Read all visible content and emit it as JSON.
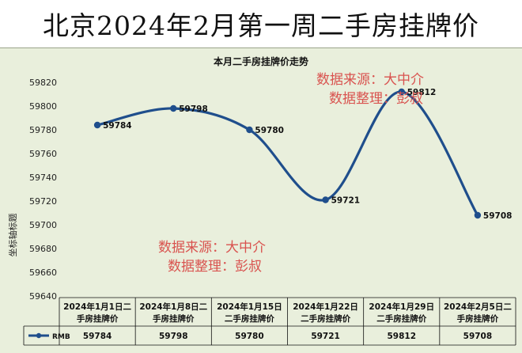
{
  "banner": {
    "title": "北京2024年2月第一周二手房挂牌价"
  },
  "chart_data": {
    "type": "line",
    "title": "本月二手房挂牌价走势",
    "ylabel": "坐标轴标题",
    "xlabel": "",
    "ylim": [
      59640,
      59820
    ],
    "y_ticks": [
      59640,
      59660,
      59680,
      59700,
      59720,
      59740,
      59760,
      59780,
      59800,
      59820
    ],
    "categories": [
      "2024年1月1日二手房挂牌价",
      "2024年1月8日二手房挂牌价",
      "2024年1月15日二手房挂牌价",
      "2024年1月22日二手房挂牌价",
      "2024年1月29日二手房挂牌价",
      "2024年2月5日二手房挂牌价"
    ],
    "category_lines": [
      [
        "2024年1月1日二",
        "手房挂牌价"
      ],
      [
        "2024年1月8日二",
        "手房挂牌价"
      ],
      [
        "2024年1月15日",
        "二手房挂牌价"
      ],
      [
        "2024年1月22日",
        "二手房挂牌价"
      ],
      [
        "2024年1月29日",
        "二手房挂牌价"
      ],
      [
        "2024年2月5日二",
        "手房挂牌价"
      ]
    ],
    "series": [
      {
        "name": "RMB",
        "values": [
          59784,
          59798,
          59780,
          59721,
          59812,
          59708
        ],
        "color": "#1f4e8c"
      }
    ],
    "data_labels": true,
    "data_table": true,
    "grid": false
  },
  "watermarks": {
    "top": [
      "数据来源：大中介",
      "数据整理：彭叔"
    ],
    "bottom": [
      "数据来源：大中介",
      "数据整理：彭叔"
    ]
  }
}
